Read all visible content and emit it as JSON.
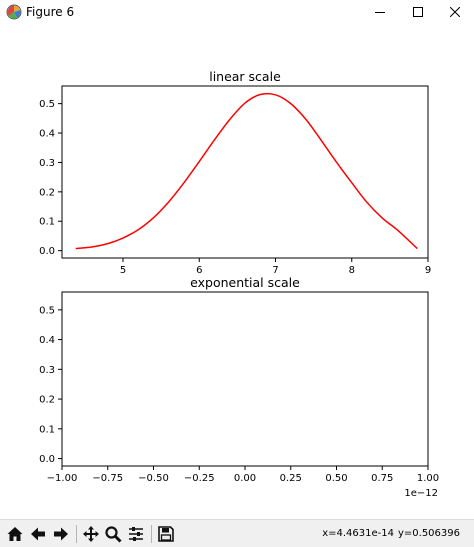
{
  "window": {
    "title": "Figure 6",
    "app_icon": "matplotlib-icon",
    "controls": [
      "minimize-icon",
      "maximize-icon",
      "close-icon"
    ]
  },
  "chart_data": [
    {
      "type": "line",
      "title": "linear scale",
      "xlim": [
        4.2,
        9.0
      ],
      "ylim": [
        -0.025,
        0.56
      ],
      "xticks": [
        5,
        6,
        7,
        8,
        9
      ],
      "yticks": [
        0.0,
        0.1,
        0.2,
        0.3,
        0.4,
        0.5
      ],
      "xtick_labels": [
        "5",
        "6",
        "7",
        "8",
        "9"
      ],
      "ytick_labels": [
        "0.0",
        "0.1",
        "0.2",
        "0.3",
        "0.4",
        "0.5"
      ],
      "grid": false,
      "series": [
        {
          "color": "#ff0000",
          "x": [
            4.38,
            4.6,
            4.8,
            5.0,
            5.2,
            5.4,
            5.6,
            5.8,
            6.0,
            6.2,
            6.4,
            6.6,
            6.8,
            7.0,
            7.2,
            7.4,
            7.6,
            7.8,
            8.0,
            8.2,
            8.4,
            8.6,
            8.86
          ],
          "y": [
            0.007,
            0.013,
            0.024,
            0.043,
            0.071,
            0.112,
            0.166,
            0.231,
            0.303,
            0.377,
            0.446,
            0.502,
            0.531,
            0.53,
            0.5,
            0.446,
            0.375,
            0.301,
            0.231,
            0.164,
            0.111,
            0.07,
            0.007
          ]
        }
      ]
    },
    {
      "type": "line",
      "title": "exponential scale",
      "xlim": [
        -1.0,
        1.0
      ],
      "ylim": [
        -0.025,
        0.56
      ],
      "xticks": [
        -1.0,
        -0.75,
        -0.5,
        -0.25,
        0.0,
        0.25,
        0.5,
        0.75,
        1.0
      ],
      "yticks": [
        0.0,
        0.1,
        0.2,
        0.3,
        0.4,
        0.5
      ],
      "xtick_labels": [
        "−1.00",
        "−0.75",
        "−0.50",
        "−0.25",
        "0.00",
        "0.25",
        "0.50",
        "0.75",
        "1.00"
      ],
      "ytick_labels": [
        "0.0",
        "0.1",
        "0.2",
        "0.3",
        "0.4",
        "0.5"
      ],
      "offset_text": "1e−12",
      "grid": false,
      "series": []
    }
  ],
  "toolbar": {
    "buttons": [
      {
        "icon": "home-icon"
      },
      {
        "icon": "back-arrow-icon"
      },
      {
        "icon": "forward-arrow-icon"
      },
      {
        "icon": "pan-icon"
      },
      {
        "icon": "zoom-icon"
      },
      {
        "icon": "configure-subplots-icon"
      },
      {
        "icon": "save-icon"
      }
    ],
    "coords": {
      "x": "x=4.4631e-14",
      "y": "y=0.506396"
    }
  }
}
